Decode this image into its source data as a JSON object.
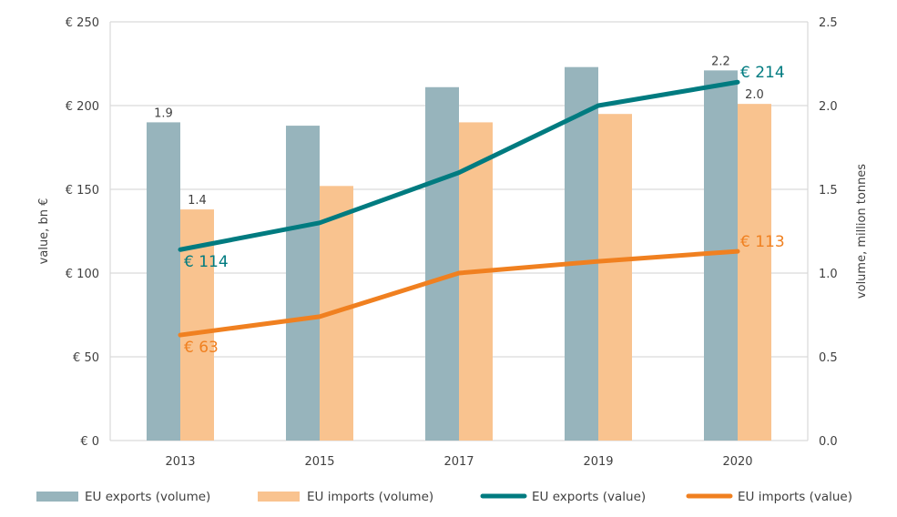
{
  "chart_data": {
    "type": "bar",
    "title": "",
    "categories": [
      "2013",
      "2015",
      "2017",
      "2019",
      "2020"
    ],
    "left_axis": {
      "label": "value, bn €",
      "range": [
        0,
        250
      ],
      "ticks": [
        0,
        50,
        100,
        150,
        200,
        250
      ],
      "tick_labels": [
        "€ 0",
        "€ 50",
        "€ 100",
        "€ 150",
        "€ 200",
        "€ 250"
      ]
    },
    "right_axis": {
      "label": "volume, million tonnes",
      "range": [
        0,
        2.5
      ],
      "ticks": [
        0,
        0.5,
        1.0,
        1.5,
        2.0,
        2.5
      ],
      "tick_labels": [
        "0.0",
        "0.5",
        "1.0",
        "1.5",
        "2.0",
        "2.5"
      ]
    },
    "grid": true,
    "series": [
      {
        "name": "EU exports (volume)",
        "kind": "bar",
        "axis": "right",
        "color": "#97b4bc",
        "values": [
          1.9,
          1.88,
          2.11,
          2.23,
          2.21
        ],
        "data_labels": [
          "1.9",
          null,
          null,
          null,
          "2.2"
        ]
      },
      {
        "name": "EU imports (volume)",
        "kind": "bar",
        "axis": "right",
        "color": "#f9c38f",
        "values": [
          1.38,
          1.52,
          1.9,
          1.95,
          2.01
        ],
        "data_labels": [
          "1.4",
          null,
          null,
          null,
          "2.0"
        ]
      },
      {
        "name": "EU exports (value)",
        "kind": "line",
        "axis": "left",
        "color": "#007b80",
        "values": [
          114,
          130,
          160,
          200,
          214
        ],
        "data_labels": [
          "€ 114",
          null,
          null,
          null,
          "€ 214"
        ]
      },
      {
        "name": "EU imports (value)",
        "kind": "line",
        "axis": "left",
        "color": "#f08020",
        "values": [
          63,
          74,
          100,
          107,
          113
        ],
        "data_labels": [
          "€ 63",
          null,
          null,
          null,
          "€ 113"
        ]
      }
    ],
    "legend": {
      "position": "bottom",
      "items": [
        "EU exports (volume)",
        "EU imports (volume)",
        "EU exports (value)",
        "EU imports (value)"
      ]
    }
  }
}
